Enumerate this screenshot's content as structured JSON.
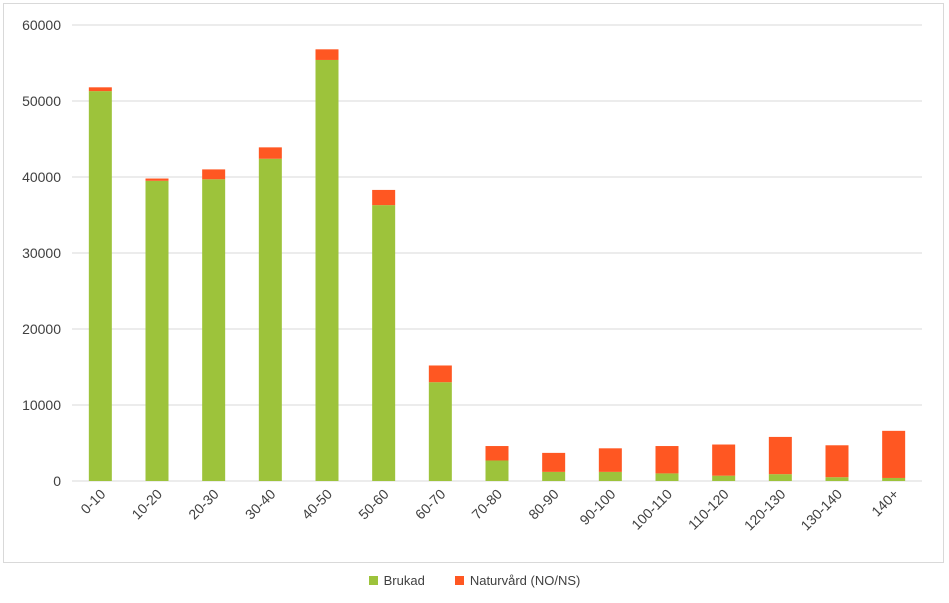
{
  "chart_data": {
    "type": "bar",
    "stacked": true,
    "title": "",
    "xlabel": "",
    "ylabel": "",
    "ylim": [
      0,
      60000
    ],
    "yticks": [
      0,
      10000,
      20000,
      30000,
      40000,
      50000,
      60000
    ],
    "grid": true,
    "legend_position": "bottom",
    "categories": [
      "0-10",
      "10-20",
      "20-30",
      "30-40",
      "40-50",
      "50-60",
      "60-70",
      "70-80",
      "80-90",
      "90-100",
      "100-110",
      "110-120",
      "120-130",
      "130-140",
      "140+"
    ],
    "series": [
      {
        "name": "Brukad",
        "color": "#9dc33b",
        "values": [
          51300,
          39500,
          39700,
          42400,
          55400,
          36300,
          13000,
          2700,
          1200,
          1200,
          1000,
          700,
          900,
          500,
          400
        ]
      },
      {
        "name": "Naturvård (NO/NS)",
        "color": "#ff5722",
        "values": [
          500,
          300,
          1300,
          1500,
          1400,
          2000,
          2200,
          1900,
          2500,
          3100,
          3600,
          4100,
          4900,
          4200,
          6200
        ]
      }
    ]
  }
}
